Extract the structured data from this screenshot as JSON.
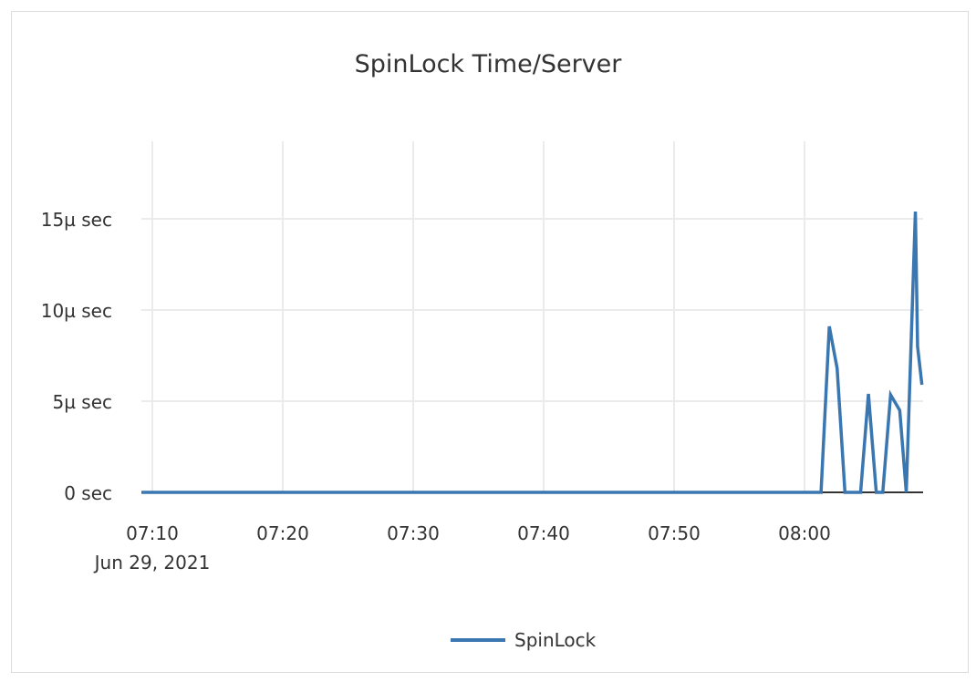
{
  "chart_data": {
    "type": "line",
    "title": "SpinLock Time/Server",
    "xlabel": "",
    "ylabel": "",
    "x_date_label": "Jun 29, 2021",
    "x_ticks": [
      "07:10",
      "07:20",
      "07:30",
      "07:40",
      "07:50",
      "08:00"
    ],
    "y_ticks": [
      {
        "value": 0,
        "label": "0 sec"
      },
      {
        "value": 5,
        "label": "5µ sec"
      },
      {
        "value": 10,
        "label": "10µ sec"
      },
      {
        "value": 15,
        "label": "15µ sec"
      }
    ],
    "ylim": [
      0,
      19
    ],
    "xlim": [
      "07:09:10",
      "08:09:00"
    ],
    "grid": true,
    "legend_position": "bottom",
    "series": [
      {
        "name": "SpinLock",
        "color": "#3a76b0",
        "unit": "µs",
        "x": [
          "07:09:10",
          "08:01:16",
          "08:01:54",
          "08:02:30",
          "08:03:06",
          "08:04:18",
          "08:04:54",
          "08:05:30",
          "08:06:00",
          "08:06:36",
          "08:07:18",
          "08:07:48",
          "08:08:30",
          "08:08:40",
          "08:09:00"
        ],
        "y": [
          0,
          0,
          9.1,
          6.8,
          0,
          0,
          5.4,
          0,
          0,
          5.35,
          4.5,
          0,
          15.4,
          8,
          5.9
        ]
      }
    ]
  }
}
